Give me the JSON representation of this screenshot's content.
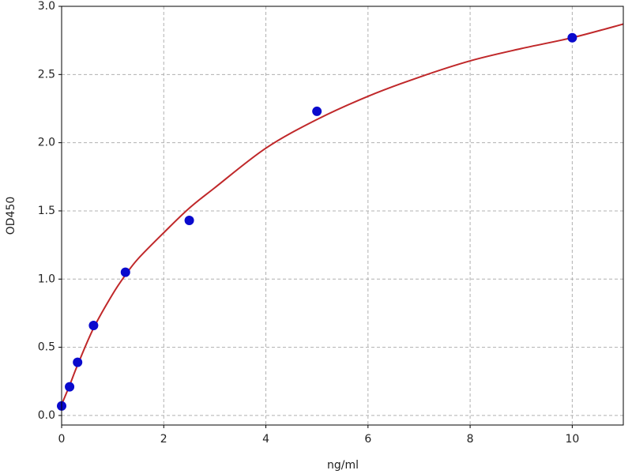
{
  "chart_data": {
    "type": "scatter",
    "x_label": "ng/ml",
    "y_label": "OD450",
    "x": [
      0,
      0.156,
      0.3125,
      0.625,
      1.25,
      2.5,
      5,
      10
    ],
    "values": [
      0.07,
      0.21,
      0.39,
      0.66,
      1.05,
      1.43,
      2.23,
      2.77
    ],
    "color": "#0a0acd",
    "fit": {
      "color": "#c0282a",
      "x": [
        0,
        0.156,
        0.3125,
        0.625,
        1,
        1.25,
        1.5,
        2,
        2.5,
        3,
        4,
        5,
        6,
        7,
        8,
        9,
        10,
        11
      ],
      "values": [
        0.08,
        0.22,
        0.37,
        0.64,
        0.89,
        1.03,
        1.15,
        1.34,
        1.52,
        1.67,
        1.96,
        2.17,
        2.34,
        2.48,
        2.6,
        2.69,
        2.77,
        2.87
      ]
    },
    "xlim": [
      0,
      11
    ],
    "ylim": [
      -0.07,
      3.0
    ],
    "xticks": [
      0,
      2,
      4,
      6,
      8,
      10
    ],
    "yticks": [
      {
        "value": 0,
        "label": "0.0"
      },
      0.5,
      {
        "value": 1,
        "label": "1.0"
      },
      1.5,
      {
        "value": 2,
        "label": "2.0"
      },
      2.5,
      {
        "value": 3,
        "label": "3.0"
      }
    ],
    "grid": true
  }
}
